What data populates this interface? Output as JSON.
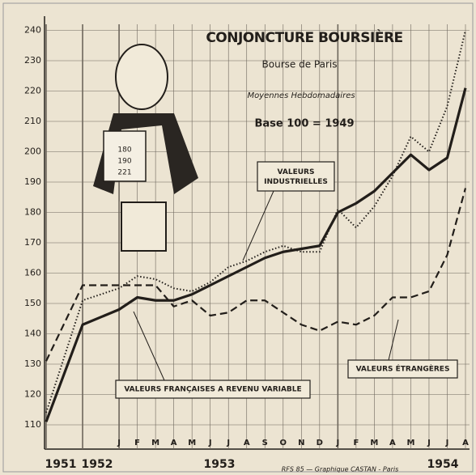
{
  "chart_data": {
    "type": "line",
    "title": "CONJONCTURE BOURSIÈRE",
    "subtitle": "Bourse de Paris",
    "note": "Moyennes Hebdomadaires",
    "base": "Base 100 = 1949",
    "footer": "RFS 85 — Graphique CASTAN - Paris",
    "scroll_text": [
      "180",
      "190",
      "221"
    ],
    "categories": [
      "1951",
      "1952",
      "J",
      "F",
      "M",
      "A",
      "M",
      "J",
      "J",
      "A",
      "S",
      "O",
      "N",
      "D",
      "J",
      "F",
      "M",
      "A",
      "M",
      "J",
      "J",
      "A"
    ],
    "years": [
      "1953",
      "1954"
    ],
    "series": [
      {
        "name": "VALEURS FRANÇAISES A REVENU VARIABLE",
        "color": "#221e1a",
        "style": "solid",
        "values": [
          111,
          143,
          148,
          152,
          151,
          151,
          153,
          156,
          159,
          162,
          165,
          167,
          168,
          169,
          180,
          183,
          187,
          193,
          199,
          194,
          198,
          221
        ]
      },
      {
        "name": "VALEURS INDUSTRIELLES",
        "color": "#221e1a",
        "style": "dotted",
        "values": [
          114,
          151,
          155,
          159,
          158,
          155,
          154,
          157,
          162,
          164,
          167,
          169,
          167,
          167,
          181,
          175,
          182,
          192,
          205,
          200,
          215,
          240
        ]
      },
      {
        "name": "VALEURS ÉTRANGÈRES",
        "color": "#221e1a",
        "style": "dashed",
        "values": [
          131,
          156,
          156,
          156,
          156,
          149,
          151,
          146,
          147,
          151,
          151,
          147,
          143,
          141,
          144,
          143,
          146,
          152,
          152,
          154,
          166,
          188
        ]
      }
    ],
    "ylim": [
      102,
      242
    ],
    "yticks": [
      110,
      120,
      130,
      140,
      150,
      160,
      170,
      180,
      190,
      200,
      210,
      220,
      230,
      240
    ],
    "grid": true
  }
}
